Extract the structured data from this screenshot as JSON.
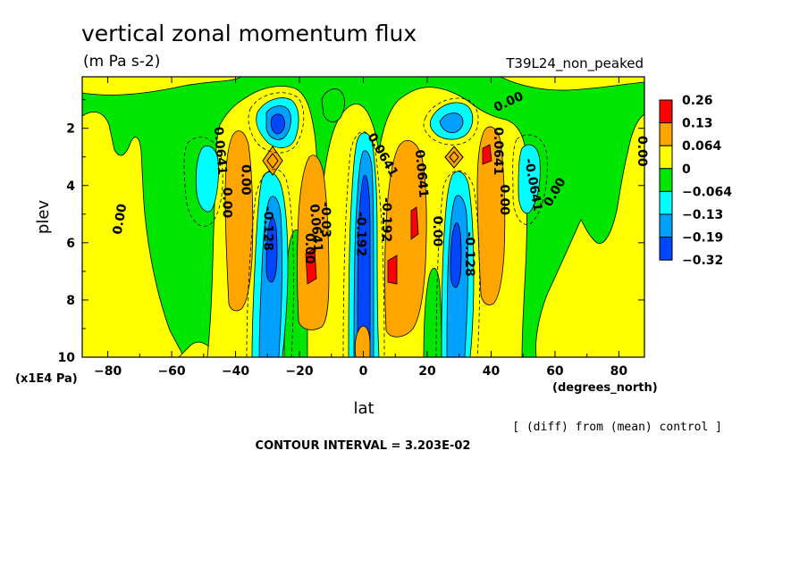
{
  "chart_data": {
    "type": "heatmap",
    "title": "vertical zonal momentum flux",
    "subtitle": "(m Pa s-2)",
    "run_label": "T39L24_non_peaked",
    "xlabel": "lat",
    "xunit": "(degrees_north)",
    "ylabel": "plev",
    "yunit": "(x1E4 Pa)",
    "xlim": [
      -88,
      88
    ],
    "ylim": [
      10,
      0.2
    ],
    "x_ticks": [
      -80,
      -60,
      -40,
      -20,
      0,
      20,
      40,
      60,
      80
    ],
    "y_ticks": [
      2,
      4,
      6,
      8,
      10
    ],
    "x_tick_labels": [
      "−80",
      "−60",
      "−40",
      "−20",
      "0",
      "20",
      "40",
      "60",
      "80"
    ],
    "y_tick_labels": [
      "2",
      "4",
      "6",
      "8",
      "10"
    ],
    "note": "[ (diff) from (mean) control ]",
    "contour_interval": "CONTOUR INTERVAL = 3.203E-02",
    "legend_position": "right",
    "levels": [
      {
        "label": "0.26",
        "color": "#ff0000"
      },
      {
        "label": "0.13",
        "color": "#ffa500"
      },
      {
        "label": "0.064",
        "color": "#ffff00"
      },
      {
        "label": "0",
        "color": "#00e600"
      },
      {
        "label": "−0.064",
        "color": "#00ffff"
      },
      {
        "label": "−0.13",
        "color": "#00a0ff"
      },
      {
        "label": "−0.19",
        "color": "#0046ff"
      },
      {
        "label": "−0.32",
        "color": null
      }
    ],
    "contour_labels": [
      {
        "text": "0.00",
        "lat": -75,
        "plev": 5.2,
        "angle": -80
      },
      {
        "text": "0.0641",
        "lat": -46,
        "plev": 2.8,
        "angle": 85
      },
      {
        "text": "0.00",
        "lat": -44,
        "plev": 4.6,
        "angle": 90
      },
      {
        "text": "0.00",
        "lat": -38,
        "plev": 3.8,
        "angle": 90
      },
      {
        "text": "-0.128",
        "lat": -31,
        "plev": 5.5,
        "angle": 90
      },
      {
        "text": "0.0641",
        "lat": -16,
        "plev": 5.5,
        "angle": 85
      },
      {
        "text": "0.00",
        "lat": -18,
        "plev": 6.2,
        "angle": 90
      },
      {
        "text": "-0.03",
        "lat": -13,
        "plev": 5.2,
        "angle": 90
      },
      {
        "text": "-0.192",
        "lat": -2,
        "plev": 5.7,
        "angle": 90
      },
      {
        "text": "-0.192",
        "lat": 6,
        "plev": 5.2,
        "angle": 90
      },
      {
        "text": "0.0641",
        "lat": 5,
        "plev": 3.0,
        "angle": 60
      },
      {
        "text": "0.0641",
        "lat": 17,
        "plev": 3.6,
        "angle": 85
      },
      {
        "text": "0.00",
        "lat": 22,
        "plev": 5.6,
        "angle": 90
      },
      {
        "text": "-0.128",
        "lat": 32,
        "plev": 6.4,
        "angle": 90
      },
      {
        "text": "0.0641",
        "lat": 41,
        "plev": 2.8,
        "angle": 90
      },
      {
        "text": "0.00",
        "lat": 43,
        "plev": 4.5,
        "angle": 90
      },
      {
        "text": "-0.0641",
        "lat": 52,
        "plev": 4.0,
        "angle": 80
      },
      {
        "text": "0.00",
        "lat": 61,
        "plev": 4.3,
        "angle": -60
      },
      {
        "text": "0.00",
        "lat": 86,
        "plev": 2.8,
        "angle": 90
      },
      {
        "text": "0.00",
        "lat": 46,
        "plev": 1.2,
        "angle": -25
      }
    ],
    "grid": false
  }
}
